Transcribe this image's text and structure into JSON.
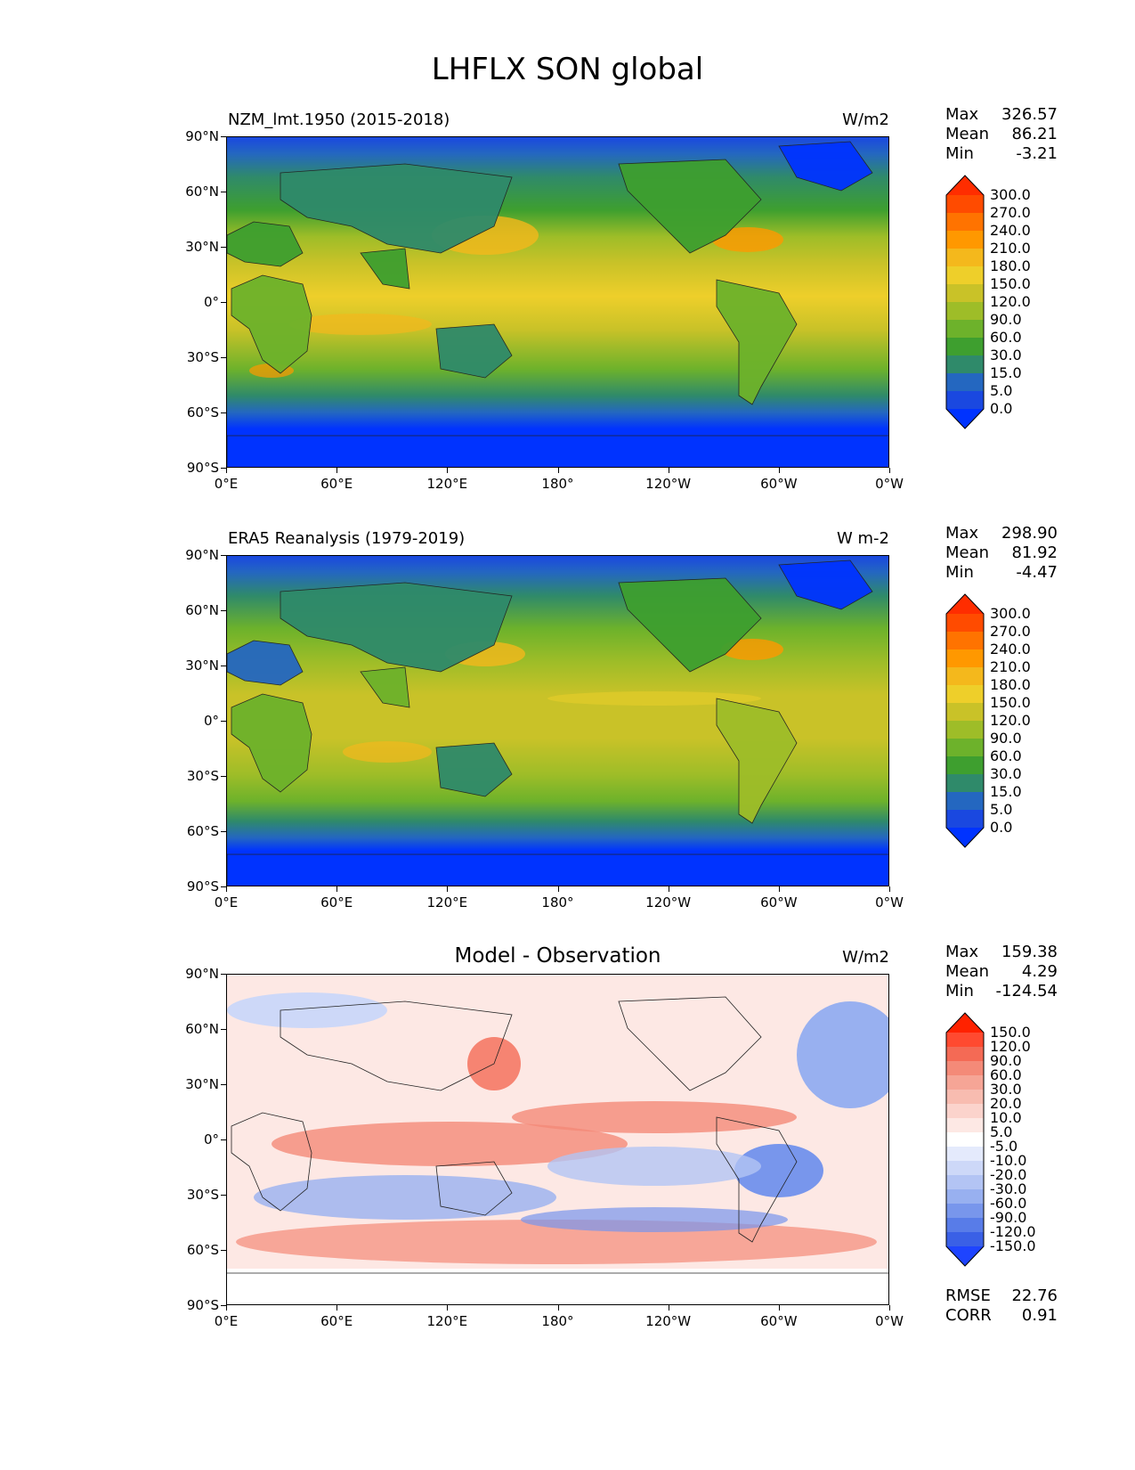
{
  "title": "LHFLX SON global",
  "axes": {
    "y_ticks": [
      "90°N",
      "60°N",
      "30°N",
      "0°",
      "30°S",
      "60°S",
      "90°S"
    ],
    "x_ticks": [
      "0°E",
      "60°E",
      "120°E",
      "180°",
      "120°W",
      "60°W",
      "0°W"
    ]
  },
  "panels": [
    {
      "title": "NZM_lmt.1950 (2015-2018)",
      "units": "W/m2",
      "stats": [
        {
          "label": "Max",
          "value": "326.57"
        },
        {
          "label": "Mean",
          "value": "86.21"
        },
        {
          "label": "Min",
          "value": "-3.21"
        }
      ],
      "colorbar": {
        "labels": [
          "300.0",
          "270.0",
          "240.0",
          "210.0",
          "180.0",
          "150.0",
          "120.0",
          "90.0",
          "60.0",
          "30.0",
          "15.0",
          "5.0",
          "0.0"
        ],
        "colors": [
          "#ff2d00",
          "#ff4b00",
          "#ff7300",
          "#ff9800",
          "#f4b81c",
          "#eecf2a",
          "#c9c228",
          "#9ebd28",
          "#6db22b",
          "#3e9f2f",
          "#2f8a6a",
          "#2467c0",
          "#1a48e0",
          "#0033ff"
        ]
      }
    },
    {
      "title": "ERA5 Reanalysis (1979-2019)",
      "units": "W m-2",
      "stats": [
        {
          "label": "Max",
          "value": "298.90"
        },
        {
          "label": "Mean",
          "value": "81.92"
        },
        {
          "label": "Min",
          "value": "-4.47"
        }
      ],
      "colorbar": {
        "labels": [
          "300.0",
          "270.0",
          "240.0",
          "210.0",
          "180.0",
          "150.0",
          "120.0",
          "90.0",
          "60.0",
          "30.0",
          "15.0",
          "5.0",
          "0.0"
        ],
        "colors": [
          "#ff2d00",
          "#ff4b00",
          "#ff7300",
          "#ff9800",
          "#f4b81c",
          "#eecf2a",
          "#c9c228",
          "#9ebd28",
          "#6db22b",
          "#3e9f2f",
          "#2f8a6a",
          "#2467c0",
          "#1a48e0",
          "#0033ff"
        ]
      }
    },
    {
      "title": "Model - Observation",
      "units": "W/m2",
      "stats": [
        {
          "label": "Max",
          "value": "159.38"
        },
        {
          "label": "Mean",
          "value": "4.29"
        },
        {
          "label": "Min",
          "value": "-124.54"
        }
      ],
      "extra_stats": [
        {
          "label": "RMSE",
          "value": "22.76"
        },
        {
          "label": "CORR",
          "value": "0.91"
        }
      ],
      "colorbar": {
        "labels": [
          "150.0",
          "120.0",
          "90.0",
          "60.0",
          "30.0",
          "20.0",
          "10.0",
          "5.0",
          "-5.0",
          "-10.0",
          "-20.0",
          "-30.0",
          "-60.0",
          "-90.0",
          "-120.0",
          "-150.0"
        ],
        "colors": [
          "#ff2200",
          "#ff4a30",
          "#f46a55",
          "#f48a78",
          "#f6a596",
          "#f8bcb0",
          "#fbd3cc",
          "#fde8e4",
          "#ffffff",
          "#e4eafc",
          "#cdd8f8",
          "#b3c4f4",
          "#98b0f0",
          "#7896ec",
          "#587ce8",
          "#3a60e6",
          "#1e44ff"
        ]
      }
    }
  ]
}
